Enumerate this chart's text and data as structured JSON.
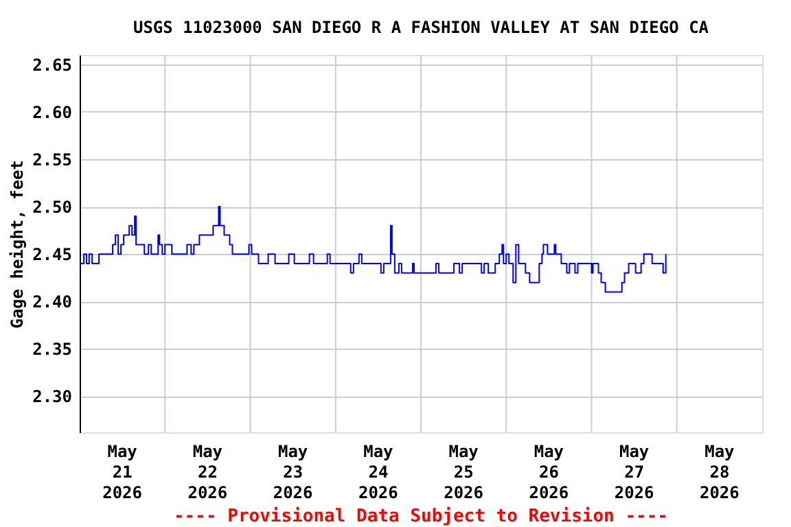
{
  "chart_data": {
    "type": "step",
    "title": "USGS 11023000 SAN DIEGO R A FASHION VALLEY AT SAN DIEGO CA",
    "ylabel": "Gage height, feet",
    "annotations": [
      "---- Provisional Data Subject to Revision ----"
    ],
    "xlim": [
      "2026-05-21T00:00",
      "2026-05-29T00:00"
    ],
    "xticks": [
      {
        "value": "2026-05-21T12:00",
        "label": "May 21 2026"
      },
      {
        "value": "2026-05-22T00:00",
        "label": null
      },
      {
        "value": "2026-05-22T12:00",
        "label": "May 22 2026"
      },
      {
        "value": "2026-05-23T00:00",
        "label": null
      },
      {
        "value": "2026-05-23T12:00",
        "label": "May 23 2026"
      },
      {
        "value": "2026-05-24T00:00",
        "label": null
      },
      {
        "value": "2026-05-24T12:00",
        "label": "May 24 2026"
      },
      {
        "value": "2026-05-25T00:00",
        "label": null
      },
      {
        "value": "2026-05-25T12:00",
        "label": "May 25 2026"
      },
      {
        "value": "2026-05-26T00:00",
        "label": null
      },
      {
        "value": "2026-05-26T12:00",
        "label": "May 26 2026"
      },
      {
        "value": "2026-05-27T00:00",
        "label": null
      },
      {
        "value": "2026-05-27T12:00",
        "label": "May 27 2026"
      },
      {
        "value": "2026-05-28T00:00",
        "label": null
      },
      {
        "value": "2026-05-28T12:00",
        "label": "May 28 2026"
      }
    ],
    "ylim": [
      2.262,
      2.66
    ],
    "yticks": [
      {
        "value": 2.3,
        "label": "2.30"
      },
      2.35,
      {
        "value": 2.4,
        "label": "2.40"
      },
      2.45,
      {
        "value": 2.5,
        "label": "2.50"
      },
      2.55,
      {
        "value": 2.6,
        "label": "2.60"
      },
      2.65
    ],
    "grid": true,
    "series": [
      {
        "color": "#0000ff",
        "x": [
          "2026-05-21T00:00",
          "2026-05-21T01:10",
          "2026-05-21T01:55",
          "2026-05-21T02:40",
          "2026-05-21T03:30",
          "2026-05-21T05:25",
          "2026-05-21T09:17",
          "2026-05-21T10:04",
          "2026-05-21T10:50",
          "2026-05-21T11:37",
          "2026-05-21T12:23",
          "2026-05-21T13:56",
          "2026-05-21T14:43",
          "2026-05-21T15:29",
          "2026-05-21T15:52",
          "2026-05-21T18:12",
          "2026-05-21T19:21",
          "2026-05-21T20:08",
          "2026-05-21T22:04",
          "2026-05-21T22:27",
          "2026-05-21T23:14",
          "2026-05-22T00:00",
          "2026-05-22T01:56",
          "2026-05-22T06:12",
          "2026-05-22T07:21",
          "2026-05-22T08:08",
          "2026-05-22T09:41",
          "2026-05-22T13:33",
          "2026-05-22T15:06",
          "2026-05-22T15:29",
          "2026-05-22T16:39",
          "2026-05-22T18:12",
          "2026-05-22T18:58",
          "2026-05-22T23:37",
          "2026-05-23T00:23",
          "2026-05-23T02:19",
          "2026-05-23T05:02",
          "2026-05-23T06:58",
          "2026-05-23T10:50",
          "2026-05-23T12:23",
          "2026-05-23T16:38",
          "2026-05-23T17:48",
          "2026-05-23T21:40",
          "2026-05-23T22:26",
          "2026-05-24T04:15",
          "2026-05-24T05:02",
          "2026-05-24T06:35",
          "2026-05-24T07:21",
          "2026-05-24T12:46",
          "2026-05-24T13:33",
          "2026-05-24T15:29",
          "2026-05-24T15:52",
          "2026-05-24T16:38",
          "2026-05-24T17:48",
          "2026-05-24T18:34",
          "2026-05-24T21:40",
          "2026-05-24T22:04",
          "2026-05-25T04:15",
          "2026-05-25T05:02",
          "2026-05-25T09:17",
          "2026-05-25T10:50",
          "2026-05-25T11:37",
          "2026-05-25T17:02",
          "2026-05-25T17:48",
          "2026-05-25T18:58",
          "2026-05-25T20:54",
          "2026-05-25T22:04",
          "2026-05-25T22:50",
          "2026-05-25T23:14",
          "2026-05-26T00:00",
          "2026-05-26T00:46",
          "2026-05-26T01:56",
          "2026-05-26T02:43",
          "2026-05-26T03:30",
          "2026-05-26T05:25",
          "2026-05-26T06:35",
          "2026-05-26T09:17",
          "2026-05-26T10:04",
          "2026-05-26T10:27",
          "2026-05-26T11:37",
          "2026-05-26T13:33",
          "2026-05-26T13:56",
          "2026-05-26T15:29",
          "2026-05-26T17:02",
          "2026-05-26T17:48",
          "2026-05-26T19:21",
          "2026-05-26T20:08",
          "2026-05-27T00:00",
          "2026-05-27T00:23",
          "2026-05-27T01:56",
          "2026-05-27T02:43",
          "2026-05-27T03:53",
          "2026-05-27T08:32",
          "2026-05-27T09:17",
          "2026-05-27T10:27",
          "2026-05-27T12:23",
          "2026-05-27T13:56",
          "2026-05-27T14:43",
          "2026-05-27T17:02",
          "2026-05-27T20:08",
          "2026-05-27T20:54"
        ],
        "values": [
          2.44,
          2.45,
          2.44,
          2.45,
          2.44,
          2.45,
          2.46,
          2.47,
          2.45,
          2.46,
          2.47,
          2.48,
          2.47,
          2.49,
          2.46,
          2.45,
          2.46,
          2.45,
          2.47,
          2.46,
          2.45,
          2.46,
          2.45,
          2.46,
          2.45,
          2.46,
          2.47,
          2.48,
          2.5,
          2.48,
          2.47,
          2.46,
          2.45,
          2.46,
          2.45,
          2.44,
          2.45,
          2.44,
          2.45,
          2.44,
          2.45,
          2.44,
          2.45,
          2.44,
          2.43,
          2.44,
          2.45,
          2.44,
          2.43,
          2.44,
          2.48,
          2.45,
          2.43,
          2.44,
          2.43,
          2.44,
          2.43,
          2.44,
          2.43,
          2.44,
          2.43,
          2.44,
          2.43,
          2.44,
          2.43,
          2.44,
          2.45,
          2.46,
          2.44,
          2.45,
          2.44,
          2.42,
          2.46,
          2.44,
          2.43,
          2.42,
          2.44,
          2.45,
          2.46,
          2.45,
          2.46,
          2.45,
          2.44,
          2.43,
          2.44,
          2.43,
          2.44,
          2.43,
          2.44,
          2.43,
          2.42,
          2.41,
          2.42,
          2.43,
          2.44,
          2.43,
          2.44,
          2.45,
          2.44,
          2.43,
          2.45
        ]
      }
    ]
  }
}
